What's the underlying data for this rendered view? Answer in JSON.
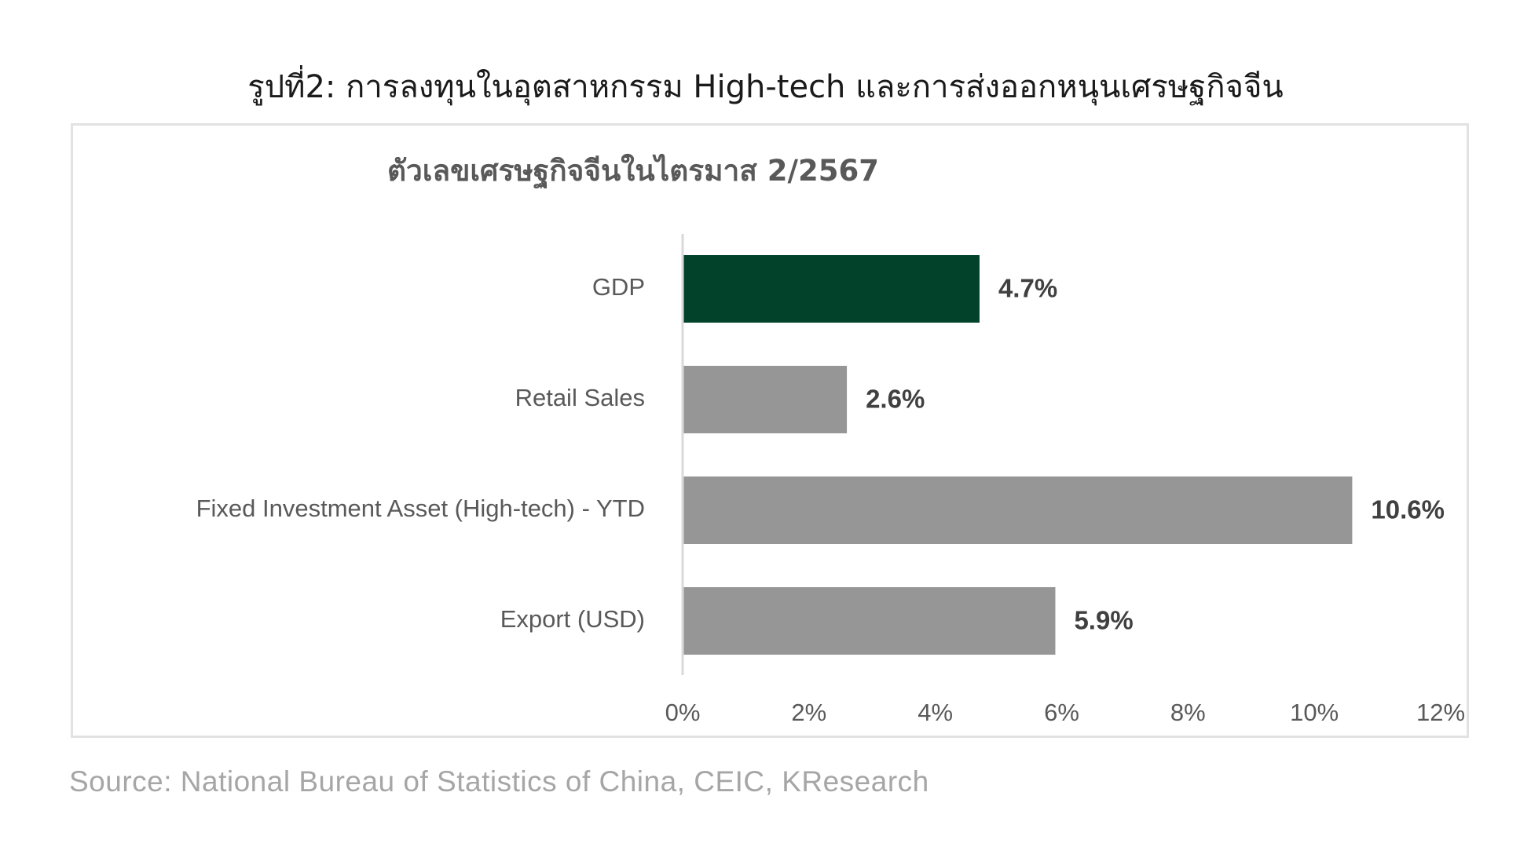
{
  "figure_caption": "รูปที่2: การลงทุนในอุตสาหกรรม High-tech และการส่งออกหนุนเศรษฐกิจจีน",
  "source": "Source: National Bureau of Statistics of China, CEIC, KResearch",
  "colors": {
    "highlight": "#02422A",
    "bar": "#969696",
    "label": "#404040",
    "axis": "#d9d9d9"
  },
  "chart_data": {
    "type": "bar",
    "orientation": "horizontal",
    "title": "ตัวเลขเศรษฐกิจจีนในไตรมาส 2/2567",
    "categories": [
      "GDP",
      "Retail Sales",
      "Fixed Investment Asset (High-tech) - YTD",
      "Export (USD)"
    ],
    "values": [
      4.7,
      2.6,
      10.6,
      5.9
    ],
    "value_labels": [
      "4.7%",
      "2.6%",
      "10.6%",
      "5.9%"
    ],
    "highlight_index": 0,
    "xlim": [
      0,
      12
    ],
    "xticks": [
      0,
      2,
      4,
      6,
      8,
      10,
      12
    ],
    "xtick_labels": [
      "0%",
      "2%",
      "4%",
      "6%",
      "8%",
      "10%",
      "12%"
    ],
    "xlabel": "",
    "ylabel": "",
    "grid": false,
    "legend": "none"
  }
}
